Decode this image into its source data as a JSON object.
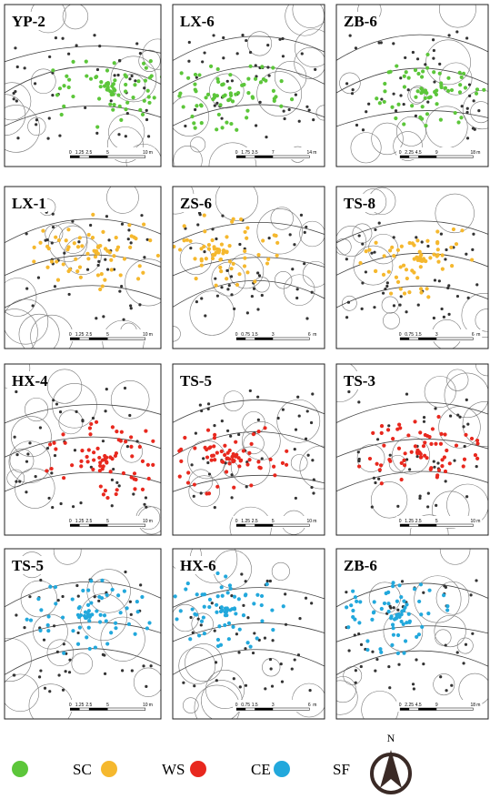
{
  "panels": [
    {
      "label": "YP-2",
      "color": "#5cc63a",
      "scale": [
        0,
        1.25,
        2.5,
        5,
        10
      ],
      "unit": "m"
    },
    {
      "label": "LX-6",
      "color": "#5cc63a",
      "scale": [
        0,
        1.75,
        3.5,
        7,
        14
      ],
      "unit": "m"
    },
    {
      "label": "ZB-6",
      "color": "#5cc63a",
      "scale": [
        0,
        2.25,
        4.5,
        9,
        18
      ],
      "unit": "m"
    },
    {
      "label": "LX-1",
      "color": "#f5b82e",
      "scale": [
        0,
        1.25,
        2.5,
        5,
        10
      ],
      "unit": "m"
    },
    {
      "label": "ZS-6",
      "color": "#f5b82e",
      "scale": [
        0,
        0.75,
        1.5,
        3,
        6
      ],
      "unit": "m"
    },
    {
      "label": "TS-8",
      "color": "#f5b82e",
      "scale": [
        0,
        0.75,
        1.5,
        3,
        6
      ],
      "unit": "m"
    },
    {
      "label": "HX-4",
      "color": "#e8281e",
      "scale": [
        0,
        1.25,
        2.5,
        5,
        10
      ],
      "unit": "m"
    },
    {
      "label": "TS-5",
      "color": "#e8281e",
      "scale": [
        0,
        1.25,
        2.5,
        5,
        10
      ],
      "unit": "m"
    },
    {
      "label": "TS-3",
      "color": "#e8281e",
      "scale": [
        0,
        1.25,
        2.5,
        5,
        10
      ],
      "unit": "m"
    },
    {
      "label": "TS-5",
      "color": "#22a8dc",
      "scale": [
        0,
        1.25,
        2.5,
        5,
        10
      ],
      "unit": "m"
    },
    {
      "label": "HX-6",
      "color": "#22a8dc",
      "scale": [
        0,
        0.75,
        1.5,
        3,
        6
      ],
      "unit": "m"
    },
    {
      "label": "ZB-6",
      "color": "#22a8dc",
      "scale": [
        0,
        2.25,
        4.5,
        9,
        18
      ],
      "unit": "m"
    }
  ],
  "legend": [
    {
      "label": "SC",
      "color": "#5cc63a"
    },
    {
      "label": "WS",
      "color": "#f5b82e"
    },
    {
      "label": "CE",
      "color": "#e8281e"
    },
    {
      "label": "SF",
      "color": "#22a8dc"
    }
  ],
  "north": "N"
}
